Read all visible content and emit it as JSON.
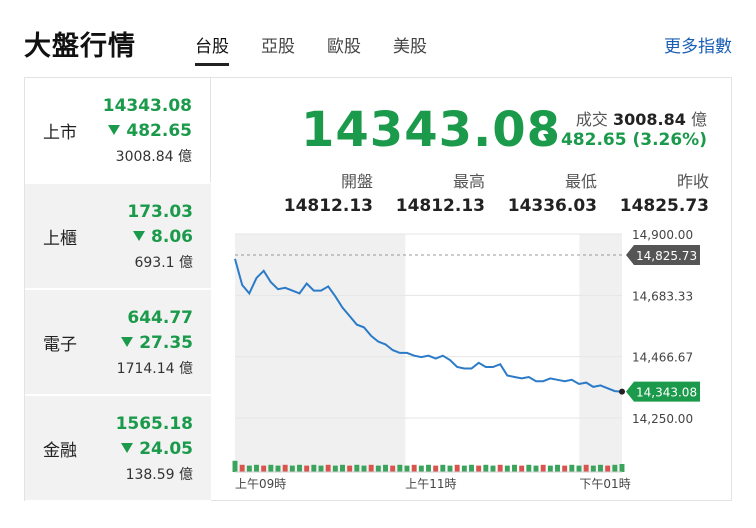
{
  "page": {
    "title": "大盤行情",
    "more_link": "更多指數"
  },
  "tabs": [
    {
      "label": "台股",
      "active": true
    },
    {
      "label": "亞股",
      "active": false
    },
    {
      "label": "歐股",
      "active": false
    },
    {
      "label": "美股",
      "active": false
    }
  ],
  "sidebar": {
    "items": [
      {
        "name": "上市",
        "price": "14343.08",
        "change": "482.65",
        "volume": "3008.84 億"
      },
      {
        "name": "上櫃",
        "price": "173.03",
        "change": "8.06",
        "volume": "693.1 億"
      },
      {
        "name": "電子",
        "price": "644.77",
        "change": "27.35",
        "volume": "1714.14 億"
      },
      {
        "name": "金融",
        "price": "1565.18",
        "change": "24.05",
        "volume": "138.59 億"
      }
    ]
  },
  "main": {
    "price": "14343.08",
    "trade_label": "成交",
    "trade_value": "3008.84",
    "trade_unit": "億",
    "change": "482.65 (3.26%)",
    "stats": [
      {
        "label": "開盤",
        "value": "14812.13"
      },
      {
        "label": "最高",
        "value": "14812.13"
      },
      {
        "label": "最低",
        "value": "14336.03"
      },
      {
        "label": "昨收",
        "value": "14825.73"
      }
    ]
  },
  "colors": {
    "down": "#1a9a4a",
    "line": "#2b7bc8",
    "link": "#1a5fb4",
    "tag": "#555555"
  },
  "chart_data": {
    "type": "line",
    "y_ticks": [
      "14,900.00",
      "14,683.33",
      "14,466.67",
      "14,250.00"
    ],
    "x_ticks": [
      "上午09時",
      "上午11時",
      "下午01時"
    ],
    "ylim": [
      14250,
      14900
    ],
    "prev_close": 14825.73,
    "prev_close_label": "14,825.73",
    "last_label": "14,343.08",
    "x": [
      "09:00",
      "09:05",
      "09:10",
      "09:15",
      "09:20",
      "09:25",
      "09:30",
      "09:35",
      "09:40",
      "09:45",
      "09:50",
      "09:55",
      "10:00",
      "10:05",
      "10:10",
      "10:15",
      "10:20",
      "10:25",
      "10:30",
      "10:35",
      "10:40",
      "10:45",
      "10:50",
      "10:55",
      "11:00",
      "11:05",
      "11:10",
      "11:15",
      "11:20",
      "11:25",
      "11:30",
      "11:35",
      "11:40",
      "11:45",
      "11:50",
      "11:55",
      "12:00",
      "12:05",
      "12:10",
      "12:15",
      "12:20",
      "12:25",
      "12:30",
      "12:35",
      "12:40",
      "12:45",
      "12:50",
      "12:55",
      "13:00",
      "13:05",
      "13:10",
      "13:15",
      "13:20",
      "13:25",
      "13:30"
    ],
    "values": [
      14812,
      14720,
      14690,
      14745,
      14770,
      14730,
      14705,
      14710,
      14700,
      14690,
      14725,
      14700,
      14700,
      14715,
      14680,
      14640,
      14610,
      14580,
      14570,
      14540,
      14520,
      14510,
      14490,
      14480,
      14480,
      14470,
      14465,
      14470,
      14460,
      14470,
      14455,
      14430,
      14425,
      14425,
      14445,
      14430,
      14430,
      14440,
      14400,
      14395,
      14390,
      14395,
      14380,
      14380,
      14390,
      14385,
      14380,
      14385,
      14370,
      14375,
      14360,
      14365,
      14355,
      14345,
      14343
    ],
    "volumes": [
      14,
      9,
      8,
      9,
      8,
      9,
      8,
      9,
      8,
      9,
      8,
      9,
      8,
      9,
      8,
      9,
      8,
      9,
      8,
      9,
      8,
      9,
      8,
      9,
      8,
      9,
      8,
      9,
      8,
      9,
      8,
      9,
      8,
      9,
      8,
      9,
      8,
      9,
      8,
      9,
      8,
      9,
      8,
      9,
      8,
      9,
      8,
      9,
      8,
      9,
      8,
      9,
      8,
      9,
      10
    ]
  }
}
